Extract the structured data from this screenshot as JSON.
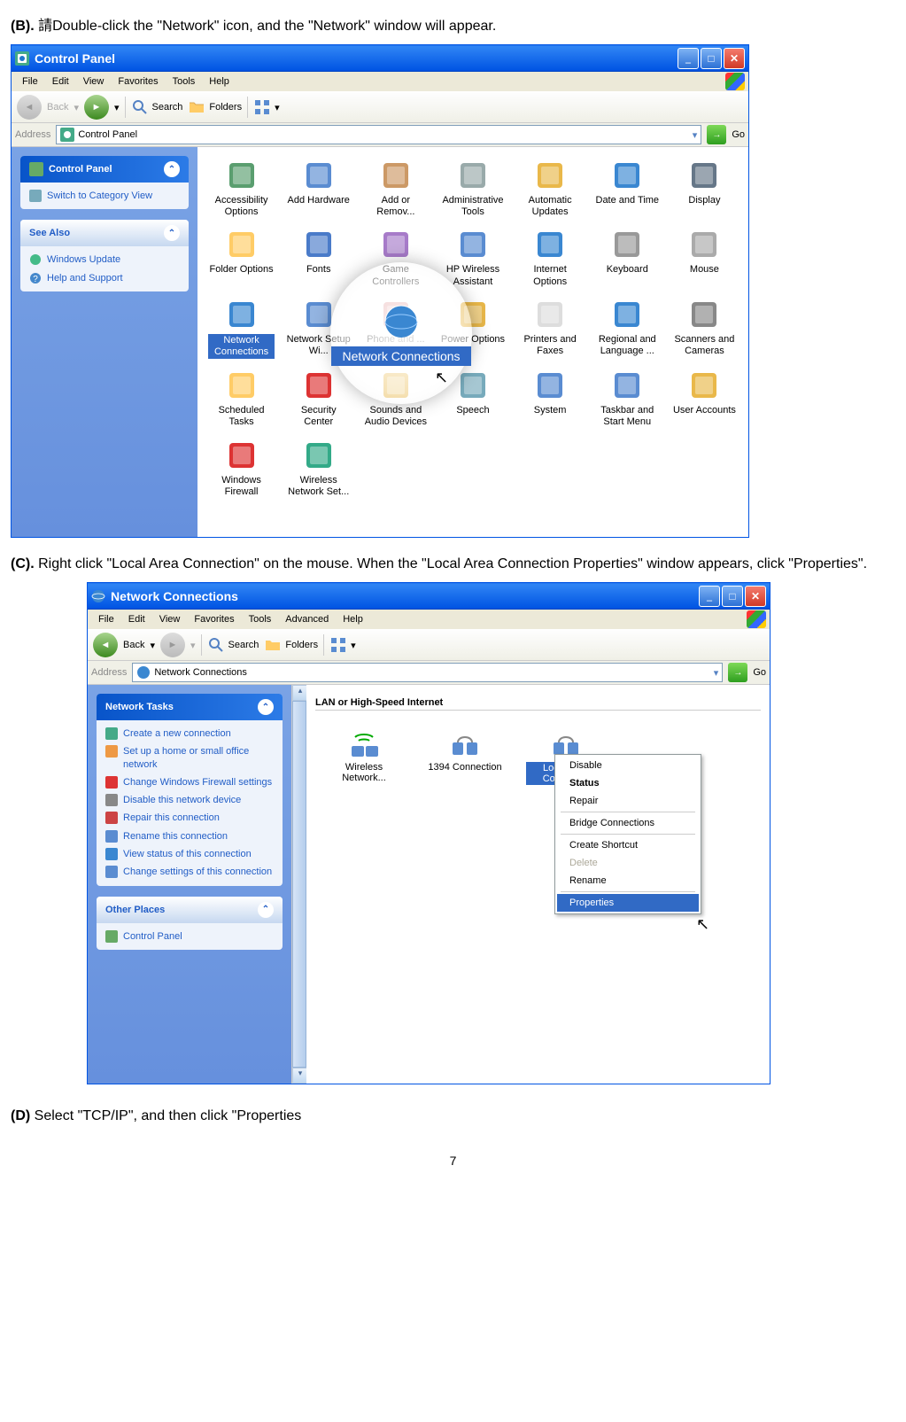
{
  "steps": {
    "b_label": "(B).",
    "b_text": "請Double-click the \"Network\" icon, and the \"Network\" window will appear.",
    "c_label": "(C).",
    "c_text_1": "Right click",
    "c_text_2": " \"Local Area Connection\" ",
    "c_text_3": "on the mouse.",
    "c_text_4": " When the \"Local Area Connection Properties\" window appears, click \"Properties\".",
    "d_label": "(D)",
    "d_text": " Select \"TCP/IP\", and then click \"Properties"
  },
  "win1": {
    "title": "Control Panel",
    "menu": [
      "File",
      "Edit",
      "View",
      "Favorites",
      "Tools",
      "Help"
    ],
    "toolbar": {
      "back": "Back",
      "search": "Search",
      "folders": "Folders"
    },
    "address_label": "Address",
    "address_value": "Control Panel",
    "go": "Go",
    "side_cp_title": "Control Panel",
    "side_cp_link": "Switch to Category View",
    "side_see_title": "See Also",
    "side_see_links": [
      "Windows Update",
      "Help and Support"
    ],
    "items": [
      "Accessibility Options",
      "Add Hardware",
      "Add or Remov...",
      "Administrative Tools",
      "Automatic Updates",
      "Date and Time",
      "Display",
      "Folder Options",
      "Fonts",
      "Game Controllers",
      "HP Wireless Assistant",
      "Internet Options",
      "Keyboard",
      "Mouse",
      "Network Connections",
      "Network Setup Wi...",
      "Phone and ...",
      "Power Options",
      "Printers and Faxes",
      "Regional and Language ...",
      "Scanners and Cameras",
      "Scheduled Tasks",
      "Security Center",
      "Sounds and Audio Devices",
      "Speech",
      "System",
      "Taskbar and Start Menu",
      "User Accounts",
      "Windows Firewall",
      "Wireless Network Set..."
    ],
    "highlight_label": "Network Connections"
  },
  "win2": {
    "title": "Network Connections",
    "menu": [
      "File",
      "Edit",
      "View",
      "Favorites",
      "Tools",
      "Advanced",
      "Help"
    ],
    "toolbar": {
      "back": "Back",
      "search": "Search",
      "folders": "Folders"
    },
    "address_label": "Address",
    "address_value": "Network Connections",
    "go": "Go",
    "side_tasks_title": "Network Tasks",
    "side_tasks": [
      "Create a new connection",
      "Set up a home or small office network",
      "Change Windows Firewall settings",
      "Disable this network device",
      "Repair this connection",
      "Rename this connection",
      "View status of this connection",
      "Change settings of this connection"
    ],
    "side_other_title": "Other Places",
    "side_other_links": [
      "Control Panel"
    ],
    "section_title": "LAN or High-Speed Internet",
    "nc_items": [
      "Wireless Network...",
      "1394 Connection",
      "Local Area Connecti..."
    ],
    "context": [
      "Disable",
      "Status",
      "Repair",
      "Bridge Connections",
      "Create Shortcut",
      "Delete",
      "Rename",
      "Properties"
    ]
  },
  "colors": {
    "xp_blue": "#0054e3",
    "select": "#316ac5"
  },
  "page_number": "7"
}
